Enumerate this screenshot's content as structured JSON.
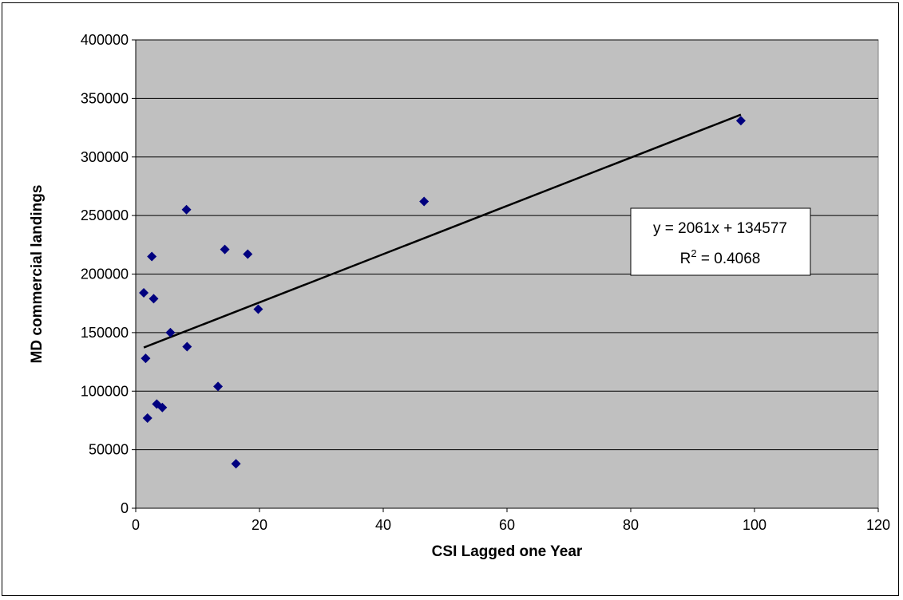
{
  "chart_data": {
    "type": "scatter",
    "title": "",
    "xlabel": "CSI Lagged one Year",
    "ylabel": "MD commercial landings",
    "xlim": [
      0,
      120
    ],
    "ylim": [
      0,
      400000
    ],
    "xticks": [
      0,
      20,
      40,
      60,
      80,
      100,
      120
    ],
    "yticks": [
      0,
      50000,
      100000,
      150000,
      200000,
      250000,
      300000,
      350000,
      400000
    ],
    "xtick_labels": [
      "0",
      "20",
      "40",
      "60",
      "80",
      "100",
      "120"
    ],
    "ytick_labels": [
      "0",
      "50000",
      "100000",
      "150000",
      "200000",
      "250000",
      "300000",
      "350000",
      "400000"
    ],
    "grid": "horizontal",
    "plot_background": "#c0c0c0",
    "marker_color": "#00007f",
    "series": [
      {
        "points": [
          [
            1.3,
            184000
          ],
          [
            1.6,
            128000
          ],
          [
            1.9,
            77000
          ],
          [
            2.6,
            215000
          ],
          [
            2.9,
            179000
          ],
          [
            3.4,
            89000
          ],
          [
            4.3,
            86000
          ],
          [
            5.6,
            150000
          ],
          [
            8.2,
            255000
          ],
          [
            8.3,
            138000
          ],
          [
            13.3,
            104000
          ],
          [
            14.4,
            221000
          ],
          [
            16.2,
            38000
          ],
          [
            18.1,
            217000
          ],
          [
            19.8,
            170000
          ],
          [
            46.6,
            262000
          ],
          [
            97.8,
            331000
          ]
        ]
      }
    ],
    "trendline": {
      "slope": 2061,
      "intercept": 134577,
      "x_range": [
        1.3,
        97.8
      ],
      "color": "#000000"
    },
    "annotation": {
      "equation": "y = 2061x + 134577",
      "r2_prefix": "R",
      "r2_sup": "2",
      "r2_suffix": " = 0.4068"
    }
  }
}
